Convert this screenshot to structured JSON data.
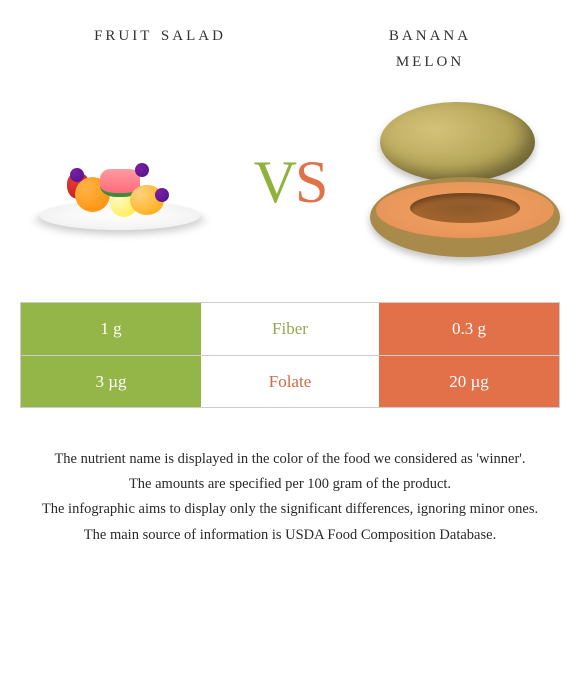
{
  "titles": {
    "left": "Fruit salad",
    "right_line1": "banana",
    "right_line2": "melon"
  },
  "vs": {
    "v": "V",
    "s": "S"
  },
  "colors": {
    "green": "#94b648",
    "orange": "#e2714a",
    "mid_text_green": "#93a850",
    "mid_text_orange": "#cf6a46"
  },
  "rows": [
    {
      "left_value": "1 g",
      "nutrient": "Fiber",
      "right_value": "0.3 g",
      "winner": "left"
    },
    {
      "left_value": "3 µg",
      "nutrient": "Folate",
      "right_value": "20 µg",
      "winner": "right"
    }
  ],
  "footnotes": [
    "The nutrient name is displayed in the color of the food we considered as 'winner'.",
    "The amounts are specified per 100 gram of the product.",
    "The infographic aims to display only the significant differences, ignoring minor ones.",
    "The main source of information is USDA Food Composition Database."
  ]
}
